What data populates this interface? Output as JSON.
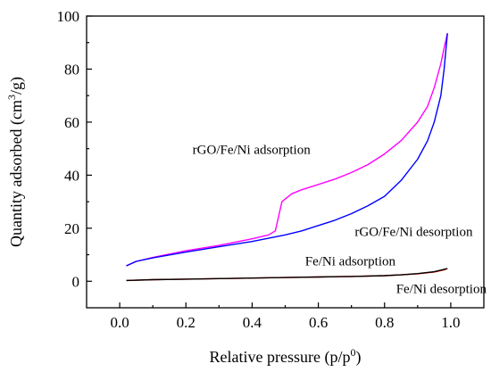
{
  "chart_data": {
    "type": "line",
    "title": "",
    "xlabel": "Relative pressure (p/p",
    "xlabel_sup": "0",
    "xlabel_end": ")",
    "ylabel": "Quantity adsorbed (cm",
    "ylabel_sup": "3",
    "ylabel_end": "/g)",
    "xlim": [
      -0.1,
      1.1
    ],
    "ylim": [
      -10,
      100
    ],
    "xticks": [
      0.0,
      0.2,
      0.4,
      0.6,
      0.8,
      1.0
    ],
    "xtick_labels": [
      "0.0",
      "0.2",
      "0.4",
      "0.6",
      "0.8",
      "1.0"
    ],
    "yticks": [
      0,
      20,
      40,
      60,
      80,
      100
    ],
    "ytick_labels": [
      "0",
      "20",
      "40",
      "60",
      "80",
      "100"
    ],
    "grid": false,
    "legend": "none",
    "series": [
      {
        "name": "rGO/Fe/Ni adsorption",
        "color": "#ff00ff",
        "points": [
          [
            0.02,
            5.8
          ],
          [
            0.05,
            7.5
          ],
          [
            0.1,
            9.0
          ],
          [
            0.2,
            11.5
          ],
          [
            0.3,
            13.5
          ],
          [
            0.4,
            16.0
          ],
          [
            0.45,
            17.5
          ],
          [
            0.47,
            19.0
          ],
          [
            0.49,
            30.0
          ],
          [
            0.5,
            31.0
          ],
          [
            0.52,
            33.0
          ],
          [
            0.55,
            34.5
          ],
          [
            0.6,
            36.5
          ],
          [
            0.65,
            38.5
          ],
          [
            0.7,
            41.0
          ],
          [
            0.75,
            44.0
          ],
          [
            0.8,
            48.0
          ],
          [
            0.85,
            53.0
          ],
          [
            0.9,
            60.0
          ],
          [
            0.93,
            66.0
          ],
          [
            0.95,
            73.0
          ],
          [
            0.97,
            82.0
          ],
          [
            0.98,
            88.0
          ],
          [
            0.99,
            93.5
          ]
        ]
      },
      {
        "name": "rGO/Fe/Ni desorption",
        "color": "#0000ff",
        "points": [
          [
            0.02,
            5.8
          ],
          [
            0.05,
            7.5
          ],
          [
            0.1,
            8.8
          ],
          [
            0.2,
            11.0
          ],
          [
            0.3,
            13.0
          ],
          [
            0.4,
            15.0
          ],
          [
            0.5,
            17.5
          ],
          [
            0.55,
            19.0
          ],
          [
            0.6,
            21.0
          ],
          [
            0.65,
            23.0
          ],
          [
            0.7,
            25.5
          ],
          [
            0.75,
            28.5
          ],
          [
            0.8,
            32.0
          ],
          [
            0.85,
            38.0
          ],
          [
            0.9,
            46.0
          ],
          [
            0.93,
            53.0
          ],
          [
            0.95,
            60.0
          ],
          [
            0.97,
            70.0
          ],
          [
            0.98,
            80.0
          ],
          [
            0.99,
            93.5
          ]
        ]
      },
      {
        "name": "Fe/Ni adsorption",
        "color": "#ff0000",
        "points": [
          [
            0.02,
            0.3
          ],
          [
            0.1,
            0.6
          ],
          [
            0.2,
            0.8
          ],
          [
            0.3,
            1.0
          ],
          [
            0.4,
            1.2
          ],
          [
            0.5,
            1.4
          ],
          [
            0.6,
            1.6
          ],
          [
            0.7,
            1.8
          ],
          [
            0.8,
            2.1
          ],
          [
            0.85,
            2.4
          ],
          [
            0.9,
            2.8
          ],
          [
            0.95,
            3.5
          ],
          [
            0.98,
            4.3
          ],
          [
            0.99,
            4.8
          ]
        ]
      },
      {
        "name": "Fe/Ni desorption",
        "color": "#000000",
        "points": [
          [
            0.02,
            0.3
          ],
          [
            0.1,
            0.6
          ],
          [
            0.2,
            0.8
          ],
          [
            0.3,
            1.0
          ],
          [
            0.4,
            1.2
          ],
          [
            0.5,
            1.4
          ],
          [
            0.6,
            1.6
          ],
          [
            0.7,
            1.8
          ],
          [
            0.8,
            2.1
          ],
          [
            0.85,
            2.4
          ],
          [
            0.9,
            2.9
          ],
          [
            0.95,
            3.6
          ],
          [
            0.98,
            4.5
          ],
          [
            0.99,
            4.8
          ]
        ]
      }
    ],
    "annotations": [
      {
        "text": "rGO/Fe/Ni adsorption",
        "x": 0.22,
        "y": 48
      },
      {
        "text": "rGO/Fe/Ni desorption",
        "x": 0.71,
        "y": 17
      },
      {
        "text": "Fe/Ni adsorption",
        "x": 0.56,
        "y": 6
      },
      {
        "text": "Fe/Ni desorption",
        "x": 0.835,
        "y": -4.5
      }
    ]
  }
}
